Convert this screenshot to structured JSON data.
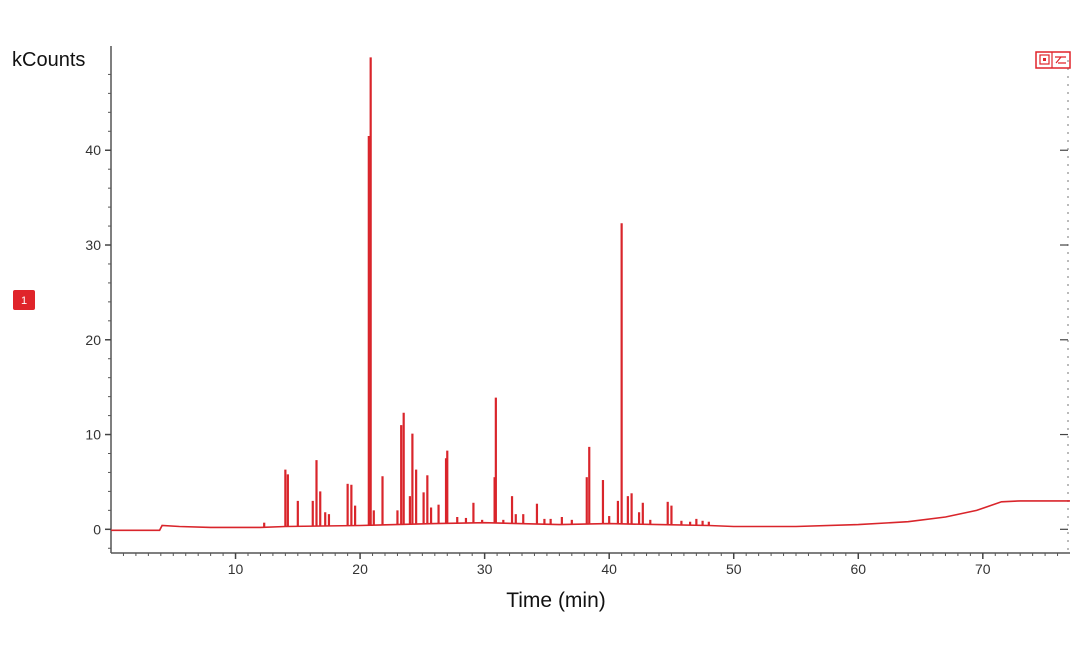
{
  "chart_data": {
    "type": "line",
    "ylabel": "kCounts",
    "xlabel": "Time (min)",
    "xlim": [
      0,
      77
    ],
    "ylim": [
      -2.5,
      51
    ],
    "xticks": [
      10,
      20,
      30,
      40,
      50,
      60,
      70
    ],
    "yticks": [
      0,
      10,
      20,
      30,
      40
    ],
    "grid": false,
    "series": [
      {
        "color": "#d9252b",
        "baseline": [
          [
            0,
            -0.1
          ],
          [
            3.9,
            -0.1
          ],
          [
            4.1,
            0.4
          ],
          [
            5.5,
            0.3
          ],
          [
            8,
            0.2
          ],
          [
            12,
            0.2
          ],
          [
            14,
            0.3
          ],
          [
            20,
            0.4
          ],
          [
            26,
            0.6
          ],
          [
            30,
            0.7
          ],
          [
            36,
            0.5
          ],
          [
            40,
            0.6
          ],
          [
            44,
            0.5
          ],
          [
            48,
            0.4
          ],
          [
            50,
            0.3
          ],
          [
            55,
            0.3
          ],
          [
            60,
            0.5
          ],
          [
            64,
            0.8
          ],
          [
            67,
            1.3
          ],
          [
            69.5,
            2.0
          ],
          [
            71.5,
            2.9
          ],
          [
            73,
            3.0
          ],
          [
            77,
            3.0
          ]
        ],
        "peaks": [
          [
            12.3,
            0.7
          ],
          [
            14.0,
            6.3
          ],
          [
            14.2,
            5.8
          ],
          [
            15.0,
            3.0
          ],
          [
            16.2,
            3.0
          ],
          [
            16.5,
            7.3
          ],
          [
            16.8,
            4.0
          ],
          [
            17.2,
            1.8
          ],
          [
            17.5,
            1.6
          ],
          [
            19.0,
            4.8
          ],
          [
            19.3,
            4.7
          ],
          [
            19.6,
            2.5
          ],
          [
            20.7,
            41.5
          ],
          [
            20.85,
            49.8
          ],
          [
            21.1,
            2.0
          ],
          [
            21.8,
            5.6
          ],
          [
            23.0,
            2.0
          ],
          [
            23.3,
            11.0
          ],
          [
            23.5,
            12.3
          ],
          [
            24.0,
            3.5
          ],
          [
            24.2,
            10.1
          ],
          [
            24.5,
            6.3
          ],
          [
            25.1,
            3.9
          ],
          [
            25.4,
            5.7
          ],
          [
            25.7,
            2.3
          ],
          [
            26.3,
            2.6
          ],
          [
            26.9,
            7.5
          ],
          [
            27.0,
            8.3
          ],
          [
            27.8,
            1.3
          ],
          [
            28.5,
            1.2
          ],
          [
            29.1,
            2.8
          ],
          [
            29.8,
            1.0
          ],
          [
            30.8,
            5.5
          ],
          [
            30.9,
            13.9
          ],
          [
            31.5,
            1.0
          ],
          [
            32.2,
            3.5
          ],
          [
            32.5,
            1.6
          ],
          [
            33.1,
            1.6
          ],
          [
            34.2,
            2.7
          ],
          [
            34.8,
            1.1
          ],
          [
            35.3,
            1.1
          ],
          [
            36.2,
            1.3
          ],
          [
            37.0,
            1.0
          ],
          [
            38.2,
            5.5
          ],
          [
            38.4,
            8.7
          ],
          [
            39.5,
            5.2
          ],
          [
            40.0,
            1.4
          ],
          [
            40.7,
            3.0
          ],
          [
            41.0,
            32.3
          ],
          [
            41.5,
            3.5
          ],
          [
            41.8,
            3.8
          ],
          [
            42.4,
            1.8
          ],
          [
            42.7,
            2.8
          ],
          [
            43.3,
            1.0
          ],
          [
            44.7,
            2.9
          ],
          [
            45.0,
            2.5
          ],
          [
            45.8,
            0.9
          ],
          [
            46.5,
            0.8
          ],
          [
            47.0,
            1.1
          ],
          [
            47.5,
            0.9
          ],
          [
            48.0,
            0.8
          ]
        ]
      }
    ]
  },
  "marker_badge": "1"
}
